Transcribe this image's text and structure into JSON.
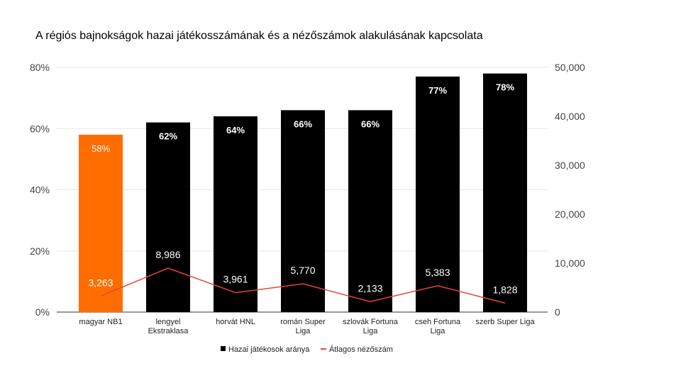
{
  "chart_data": {
    "type": "bar+line",
    "title": "A  régiós bajnokságok hazai játékosszámának és a nézőszámok alakulásának kapcsolata",
    "categories": [
      [
        "magyar NB1"
      ],
      [
        "lengyel",
        "Ekstraklasa"
      ],
      [
        "horvát HNL"
      ],
      [
        "román Super",
        "Liga"
      ],
      [
        "szlovák Fortuna",
        "Liga"
      ],
      [
        "cseh Fortuna",
        "Liga"
      ],
      [
        "szerb Super Liga"
      ]
    ],
    "series": [
      {
        "name": "Hazai játékosok aránya",
        "type": "bar",
        "axis": "left",
        "color": "#000000",
        "values": [
          58,
          62,
          64,
          66,
          66,
          77,
          78
        ],
        "labels": [
          "58%",
          "62%",
          "64%",
          "66%",
          "66%",
          "77%",
          "78%"
        ],
        "highlight_index": 0,
        "highlight_color": "#ff6d01"
      },
      {
        "name": "Átlagos nézőszám",
        "type": "line",
        "axis": "right",
        "color": "#ea4335",
        "values": [
          3263,
          8986,
          3961,
          5770,
          2133,
          5383,
          1828
        ],
        "labels": [
          "3,263",
          "8,986",
          "3,961",
          "5,770",
          "2,133",
          "5,383",
          "1,828"
        ]
      }
    ],
    "left_axis": {
      "range": [
        0,
        80
      ],
      "ticks": [
        "0%",
        "20%",
        "40%",
        "60%",
        "80%"
      ],
      "tick_values": [
        0,
        20,
        40,
        60,
        80
      ]
    },
    "right_axis": {
      "range": [
        0,
        50000
      ],
      "ticks": [
        "0",
        "10,000",
        "20,000",
        "30,000",
        "40,000",
        "50,000"
      ],
      "tick_values": [
        0,
        10000,
        20000,
        30000,
        40000,
        50000
      ]
    },
    "grid": true,
    "legend": "bottom"
  }
}
